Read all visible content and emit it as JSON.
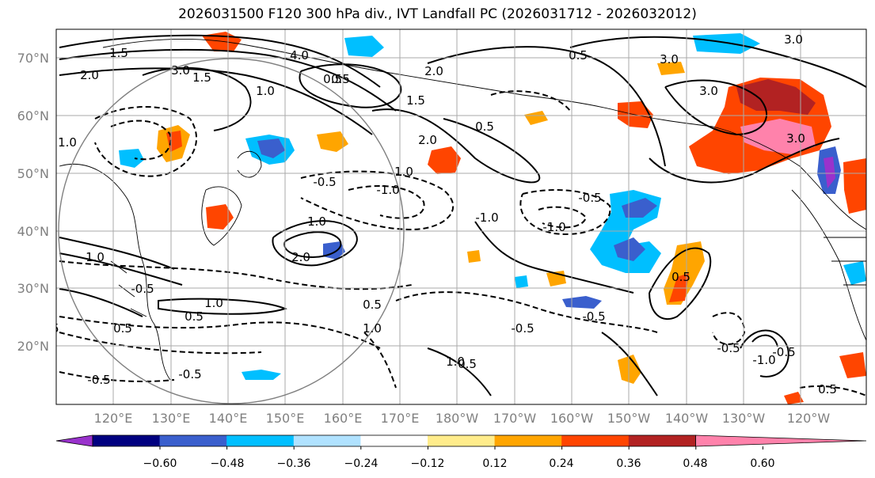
{
  "title": "2026031500 F120 300 hPa div., IVT Landfall PC (2026031712 - 2026032012)",
  "lat_labels": [
    "70°N",
    "60°N",
    "50°N",
    "40°N",
    "30°N",
    "20°N"
  ],
  "lon_labels": [
    "120°E",
    "130°E",
    "140°E",
    "150°E",
    "160°E",
    "170°E",
    "180°W",
    "170°W",
    "160°W",
    "150°W",
    "140°W",
    "130°W",
    "120°W"
  ],
  "colorbar": {
    "colors": [
      "#9932cc",
      "#000080",
      "#3a5fcd",
      "#00bfff",
      "#b0e2ff",
      "#ffffff",
      "#ffec8b",
      "#ffa500",
      "#ff4500",
      "#b22222",
      "#ff82ab"
    ],
    "tick_labels": [
      "−0.60",
      "−0.48",
      "−0.36",
      "−0.24",
      "−0.12",
      "0.12",
      "0.24",
      "0.36",
      "0.48",
      "0.60"
    ]
  },
  "contour_labels": [
    "1.5",
    "2.0",
    "3.0",
    "4.0",
    "0.5",
    "1.5",
    "1.0",
    "2.0",
    "1.0",
    "0.5",
    "1.5",
    "1.0",
    "2.0",
    "3.0",
    "0.5",
    "3.0",
    "0.5",
    "3.0",
    "3.0",
    "1.0",
    "2.0",
    "1.0",
    "0.5",
    "-0.5",
    "-1.0",
    "-1.0",
    "-0.5",
    "-0.5",
    "-0.5",
    "0.5",
    "1.0",
    "1.0",
    "0.5",
    "-0.5",
    "-0.5",
    "-1.0",
    "0.5",
    "-0.5",
    "-0.5",
    "-1.0",
    "1.0",
    "-0.5",
    "0.5",
    "0.5",
    "-0.5"
  ]
}
